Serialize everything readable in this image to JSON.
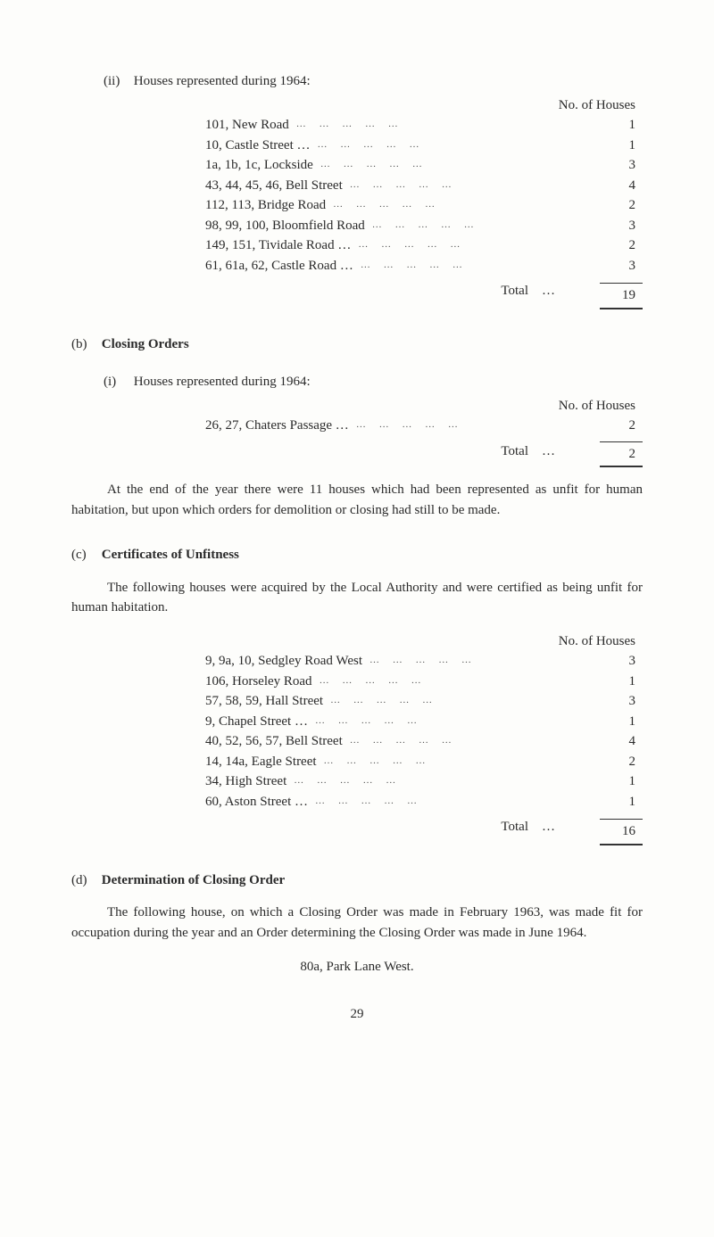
{
  "section_ii": {
    "numeral": "(ii)",
    "title": "Houses represented during 1964:",
    "header": "No. of Houses",
    "rows": [
      {
        "label": "101, New Road",
        "value": "1"
      },
      {
        "label": "10, Castle Street …",
        "value": "1"
      },
      {
        "label": "1a, 1b, 1c, Lockside",
        "value": "3"
      },
      {
        "label": "43, 44, 45, 46, Bell Street",
        "value": "4"
      },
      {
        "label": "112, 113, Bridge Road",
        "value": "2"
      },
      {
        "label": "98, 99, 100, Bloomfield Road",
        "value": "3"
      },
      {
        "label": "149, 151, Tividale Road …",
        "value": "2"
      },
      {
        "label": "61, 61a, 62, Castle Road …",
        "value": "3"
      }
    ],
    "total_label": "Total",
    "total_dots": "…",
    "total_value": "19"
  },
  "section_b": {
    "letter": "(b)",
    "title": "Closing Orders",
    "sub_i": {
      "numeral": "(i)",
      "title": "Houses represented during 1964:",
      "header": "No. of Houses",
      "rows": [
        {
          "label": "26, 27, Chaters Passage …",
          "value": "2"
        }
      ],
      "total_label": "Total",
      "total_dots": "…",
      "total_value": "2"
    },
    "para": "At the end of the year there were 11 houses which had been rep­resented as unfit for human habitation, but upon which orders for demolition or closing had still to be made."
  },
  "section_c": {
    "letter": "(c)",
    "title": "Certificates of Unfitness",
    "para": "The following houses were acquired by the Local Authority and were certified as being unfit for human habitation.",
    "header": "No. of Houses",
    "rows": [
      {
        "label": "9, 9a, 10, Sedgley Road West",
        "value": "3"
      },
      {
        "label": "106, Horseley Road",
        "value": "1"
      },
      {
        "label": "57, 58, 59, Hall Street",
        "value": "3"
      },
      {
        "label": "9, Chapel Street …",
        "value": "1"
      },
      {
        "label": "40, 52, 56, 57, Bell Street",
        "value": "4"
      },
      {
        "label": "14, 14a, Eagle Street",
        "value": "2"
      },
      {
        "label": "34, High Street",
        "value": "1"
      },
      {
        "label": "60, Aston Street …",
        "value": "1"
      }
    ],
    "total_label": "Total",
    "total_dots": "…",
    "total_value": "16"
  },
  "section_d": {
    "letter": "(d)",
    "title": "Determination of Closing Order",
    "para": "The following house, on which a Closing Order was made in February 1963, was made fit for occupation during the year and an Order determining the Closing Order was made in June 1964.",
    "address": "80a, Park Lane West."
  },
  "page_number": "29",
  "dots_fill": "… … … … …"
}
